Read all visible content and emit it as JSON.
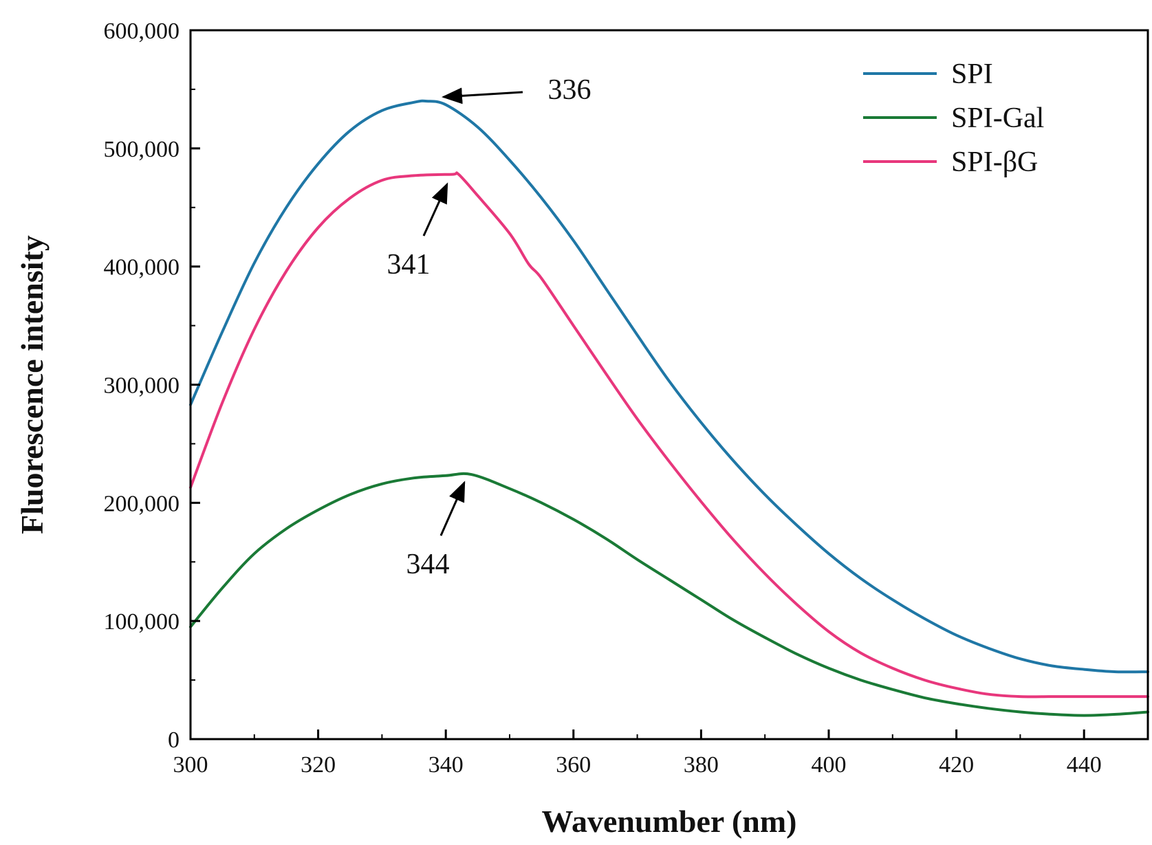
{
  "chart_data": {
    "type": "line",
    "title": "",
    "xlabel": "Wavenumber (nm)",
    "ylabel": "Fluorescence intensity",
    "xlim": [
      300,
      450
    ],
    "ylim": [
      0,
      600000
    ],
    "x_ticks": [
      300,
      320,
      340,
      360,
      380,
      400,
      420,
      440
    ],
    "x_tick_labels": [
      "300",
      "320",
      "340",
      "360",
      "380",
      "400",
      "420",
      "440"
    ],
    "y_ticks": [
      0,
      100000,
      200000,
      300000,
      400000,
      500000,
      600000
    ],
    "y_tick_labels": [
      "0",
      "100,000",
      "200,000",
      "300,000",
      "400,000",
      "500,000",
      "600,000"
    ],
    "grid": false,
    "legend_position": "top-right",
    "series": [
      {
        "name": "SPI",
        "color": "#1f77a6",
        "x": [
          300,
          305,
          310,
          315,
          320,
          325,
          330,
          335,
          337,
          340,
          345,
          350,
          355,
          360,
          365,
          370,
          375,
          380,
          385,
          390,
          395,
          400,
          405,
          410,
          415,
          420,
          425,
          430,
          435,
          440,
          445,
          450
        ],
        "y": [
          283000,
          345000,
          403000,
          450000,
          487000,
          515000,
          532000,
          539000,
          540000,
          537000,
          518000,
          490000,
          458000,
          422000,
          382000,
          342000,
          303000,
          268000,
          236000,
          207000,
          181000,
          157000,
          136000,
          118000,
          102000,
          88000,
          77000,
          68000,
          62000,
          59000,
          57000,
          57000
        ]
      },
      {
        "name": "SPI-Gal",
        "color": "#1a7a36",
        "x": [
          300,
          305,
          310,
          315,
          320,
          325,
          330,
          335,
          340,
          344,
          350,
          355,
          360,
          365,
          370,
          375,
          380,
          385,
          390,
          395,
          400,
          405,
          410,
          415,
          420,
          425,
          430,
          435,
          440,
          445,
          450
        ],
        "y": [
          95000,
          128000,
          157000,
          178000,
          194000,
          207000,
          216000,
          221000,
          223000,
          224000,
          212000,
          200000,
          186000,
          170000,
          152000,
          135000,
          118000,
          101000,
          86000,
          72000,
          60000,
          50000,
          42000,
          35000,
          30000,
          26000,
          23000,
          21000,
          20000,
          21000,
          23000
        ]
      },
      {
        "name": "SPI-βG",
        "color": "#e8377c",
        "x": [
          300,
          305,
          310,
          315,
          320,
          325,
          330,
          335,
          341,
          342,
          345,
          350,
          353,
          355,
          360,
          365,
          370,
          375,
          380,
          385,
          390,
          395,
          400,
          405,
          410,
          415,
          420,
          425,
          430,
          435,
          440,
          445,
          450
        ],
        "y": [
          213000,
          285000,
          347000,
          396000,
          433000,
          458000,
          473000,
          477000,
          478000,
          478000,
          460000,
          428000,
          402000,
          390000,
          350000,
          310000,
          271000,
          235000,
          201000,
          169000,
          140000,
          114000,
          91000,
          73000,
          60000,
          50000,
          43000,
          38000,
          36000,
          36000,
          36000,
          36000,
          36000
        ]
      }
    ],
    "annotations": [
      {
        "text": "336",
        "x": 336,
        "y": 540000
      },
      {
        "text": "341",
        "x": 341,
        "y": 478000
      },
      {
        "text": "344",
        "x": 344,
        "y": 224000
      }
    ]
  }
}
